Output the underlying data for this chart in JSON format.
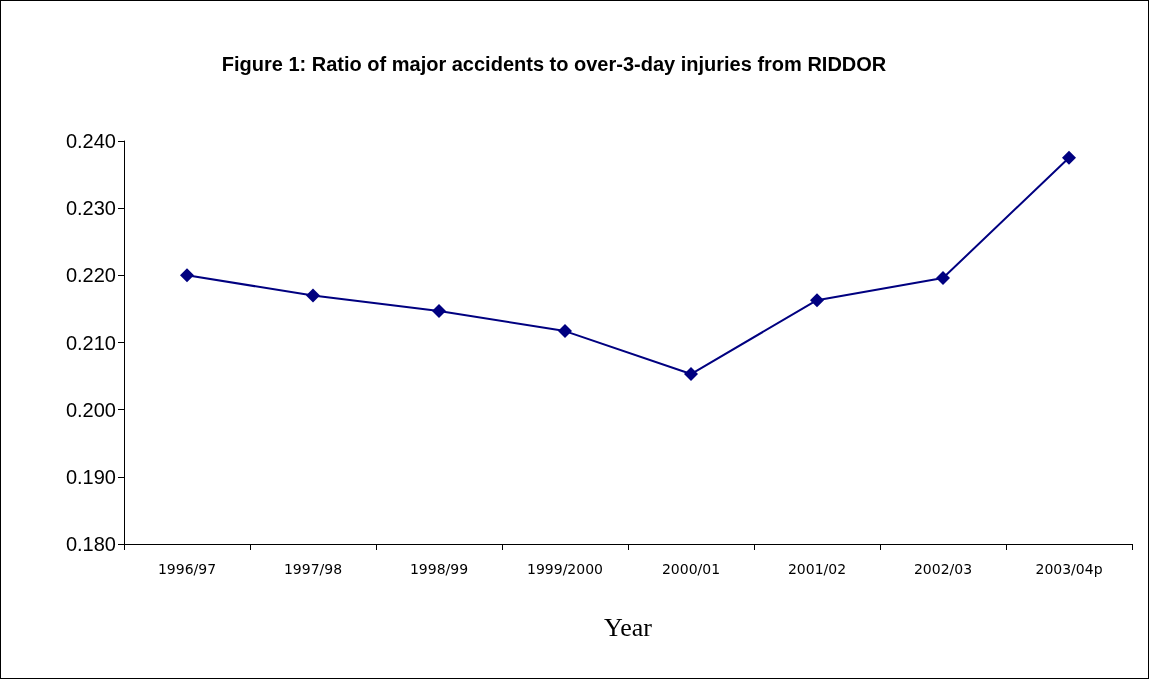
{
  "chart_data": {
    "type": "line",
    "title": "Figure 1: Ratio of major accidents to over-3-day injuries from RIDDOR",
    "xlabel": "Year",
    "categories": [
      "1996/97",
      "1997/98",
      "1998/99",
      "1999/2000",
      "2000/01",
      "2001/02",
      "2002/03",
      "2003/04p"
    ],
    "series": [
      {
        "color": "#000080",
        "values": [
          0.22,
          0.217,
          0.2147,
          0.2117,
          0.2053,
          0.2163,
          0.2196,
          0.2375
        ]
      }
    ],
    "ylim": [
      0.18,
      0.24
    ],
    "yticks": [
      {
        "value": 0.18,
        "label": "0.180"
      },
      {
        "value": 0.19,
        "label": "0.190"
      },
      {
        "value": 0.2,
        "label": "0.200"
      },
      {
        "value": 0.21,
        "label": "0.210"
      },
      {
        "value": 0.22,
        "label": "0.220"
      },
      {
        "value": 0.23,
        "label": "0.230"
      },
      {
        "value": 0.24,
        "label": "0.240"
      }
    ],
    "grid": false,
    "marker": "diamond",
    "line_style": "solid"
  }
}
